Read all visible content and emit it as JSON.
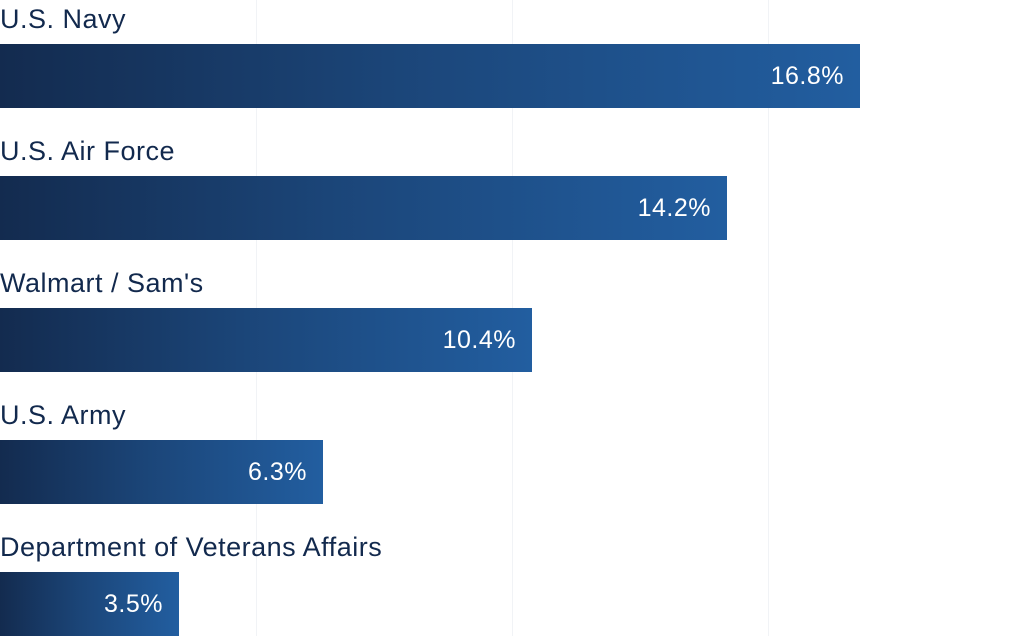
{
  "chart_data": {
    "type": "bar",
    "orientation": "horizontal",
    "categories": [
      "U.S. Navy",
      "U.S. Air Force",
      "Walmart / Sam's",
      "U.S. Army",
      "Department of Veterans Affairs"
    ],
    "values": [
      16.8,
      14.2,
      10.4,
      6.3,
      3.5
    ],
    "value_labels": [
      "16.8%",
      "14.2%",
      "10.4%",
      "6.3%",
      "3.5%"
    ],
    "unit": "%",
    "xlim": [
      0,
      20
    ],
    "grid": true,
    "title": "",
    "xlabel": "",
    "ylabel": "",
    "colors": {
      "bar_start": "#132b4f",
      "bar_end": "#225ea0",
      "label": "#12294d",
      "value_text": "#ffffff",
      "grid": "#f1f3f6"
    }
  }
}
